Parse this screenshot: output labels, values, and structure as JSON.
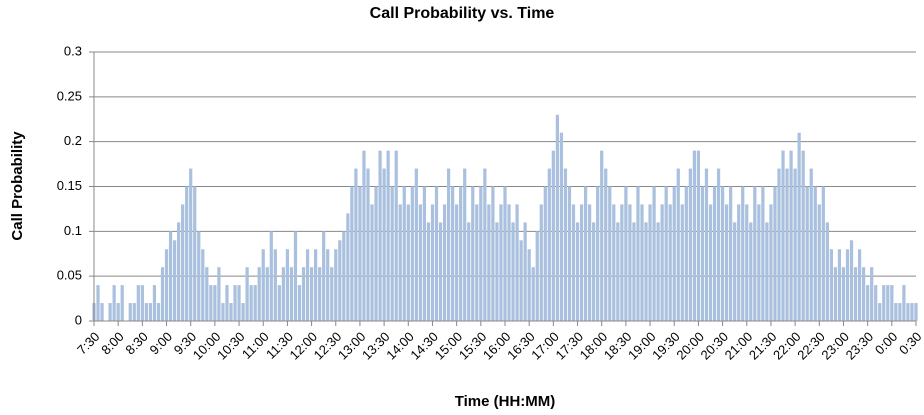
{
  "chart_data": {
    "type": "bar",
    "title": "Call Probability vs. Time",
    "x_label": "Time (HH:MM)",
    "y_label": "Call Probability",
    "color": "#a9c0de",
    "grid": true,
    "ylim": [
      0,
      0.3
    ],
    "yticks": [
      0,
      0.05,
      0.1,
      0.15,
      0.2,
      0.25,
      0.3
    ],
    "categories": [
      "7:30",
      null,
      null,
      null,
      null,
      null,
      "8:00",
      null,
      null,
      null,
      null,
      null,
      "8:30",
      null,
      null,
      null,
      null,
      null,
      "9:00",
      null,
      null,
      null,
      null,
      null,
      "9:30",
      null,
      null,
      null,
      null,
      null,
      "10:00",
      null,
      null,
      null,
      null,
      null,
      "10:30",
      null,
      null,
      null,
      null,
      null,
      "11:00",
      null,
      null,
      null,
      null,
      null,
      "11:30",
      null,
      null,
      null,
      null,
      null,
      "12:00",
      null,
      null,
      null,
      null,
      null,
      "12:30",
      null,
      null,
      null,
      null,
      null,
      "13:00",
      null,
      null,
      null,
      null,
      null,
      "13:30",
      null,
      null,
      null,
      null,
      null,
      "14:00",
      null,
      null,
      null,
      null,
      null,
      "14:30",
      null,
      null,
      null,
      null,
      null,
      "15:00",
      null,
      null,
      null,
      null,
      null,
      "15:30",
      null,
      null,
      null,
      null,
      null,
      "16:00",
      null,
      null,
      null,
      null,
      null,
      "16:30",
      null,
      null,
      null,
      null,
      null,
      "17:00",
      null,
      null,
      null,
      null,
      null,
      "17:30",
      null,
      null,
      null,
      null,
      null,
      "18:00",
      null,
      null,
      null,
      null,
      null,
      "18:30",
      null,
      null,
      null,
      null,
      null,
      "19:00",
      null,
      null,
      null,
      null,
      null,
      "19:30",
      null,
      null,
      null,
      null,
      null,
      "20:00",
      null,
      null,
      null,
      null,
      null,
      "20:30",
      null,
      null,
      null,
      null,
      null,
      "21:00",
      null,
      null,
      null,
      null,
      null,
      "21:30",
      null,
      null,
      null,
      null,
      null,
      "22:00",
      null,
      null,
      null,
      null,
      null,
      "22:30",
      null,
      null,
      null,
      null,
      null,
      "23:00",
      null,
      null,
      null,
      null,
      null,
      "23:30",
      null,
      null,
      null,
      null,
      null,
      "0:00",
      null,
      null,
      null,
      null,
      null,
      "0:30"
    ],
    "values": [
      0.02,
      0.04,
      0.02,
      0,
      0.02,
      0.04,
      0.02,
      0.04,
      0,
      0.02,
      0.02,
      0.04,
      0.04,
      0.02,
      0.02,
      0.04,
      0.02,
      0.06,
      0.08,
      0.1,
      0.09,
      0.11,
      0.13,
      0.15,
      0.17,
      0.15,
      0.1,
      0.08,
      0.06,
      0.04,
      0.04,
      0.06,
      0.02,
      0.04,
      0.02,
      0.04,
      0.04,
      0.02,
      0.06,
      0.04,
      0.04,
      0.06,
      0.08,
      0.06,
      0.1,
      0.08,
      0.04,
      0.06,
      0.08,
      0.06,
      0.1,
      0.04,
      0.06,
      0.08,
      0.06,
      0.08,
      0.06,
      0.1,
      0.08,
      0.06,
      0.08,
      0.09,
      0.1,
      0.12,
      0.15,
      0.17,
      0.15,
      0.19,
      0.17,
      0.13,
      0.15,
      0.19,
      0.17,
      0.19,
      0.15,
      0.19,
      0.13,
      0.15,
      0.13,
      0.15,
      0.17,
      0.13,
      0.15,
      0.11,
      0.13,
      0.15,
      0.11,
      0.13,
      0.17,
      0.15,
      0.13,
      0.15,
      0.17,
      0.11,
      0.15,
      0.13,
      0.15,
      0.17,
      0.13,
      0.15,
      0.11,
      0.13,
      0.15,
      0.13,
      0.11,
      0.13,
      0.09,
      0.11,
      0.08,
      0.06,
      0.1,
      0.13,
      0.15,
      0.17,
      0.19,
      0.23,
      0.21,
      0.17,
      0.15,
      0.13,
      0.11,
      0.13,
      0.15,
      0.13,
      0.11,
      0.15,
      0.19,
      0.17,
      0.15,
      0.13,
      0.11,
      0.13,
      0.15,
      0.13,
      0.11,
      0.15,
      0.13,
      0.11,
      0.13,
      0.15,
      0.11,
      0.13,
      0.15,
      0.13,
      0.15,
      0.17,
      0.13,
      0.15,
      0.17,
      0.19,
      0.19,
      0.15,
      0.17,
      0.13,
      0.15,
      0.17,
      0.15,
      0.13,
      0.15,
      0.11,
      0.13,
      0.15,
      0.13,
      0.11,
      0.15,
      0.13,
      0.15,
      0.11,
      0.13,
      0.15,
      0.17,
      0.19,
      0.17,
      0.19,
      0.17,
      0.21,
      0.19,
      0.15,
      0.17,
      0.15,
      0.13,
      0.15,
      0.11,
      0.08,
      0.06,
      0.08,
      0.06,
      0.08,
      0.09,
      0.06,
      0.08,
      0.06,
      0.04,
      0.06,
      0.04,
      0.02,
      0.04,
      0.04,
      0.04,
      0.02,
      0.02,
      0.04,
      0.02,
      0.02,
      0.02
    ]
  }
}
